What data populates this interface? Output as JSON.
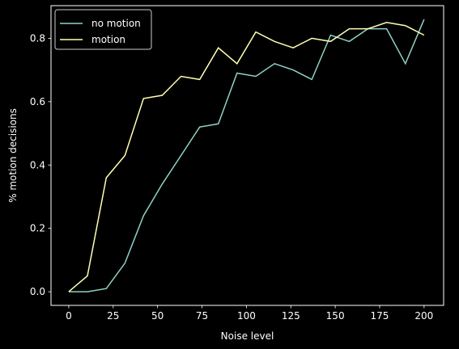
{
  "chart_data": {
    "type": "line",
    "xlabel": "Noise level",
    "ylabel": "% motion decisions",
    "xlim": [
      -10,
      211
    ],
    "ylim": [
      -0.043,
      0.903
    ],
    "xticks": [
      0,
      25,
      50,
      75,
      100,
      125,
      150,
      175,
      200
    ],
    "yticks": [
      0.0,
      0.2,
      0.4,
      0.6,
      0.8
    ],
    "grid": false,
    "legend_position": "top-left",
    "background": "#000000",
    "x": [
      0,
      10.5,
      21.1,
      31.6,
      42.1,
      52.6,
      63.2,
      73.7,
      84.2,
      94.7,
      105.3,
      115.8,
      126.3,
      136.8,
      147.4,
      157.9,
      168.4,
      178.9,
      189.5,
      200
    ],
    "series": [
      {
        "name": "no motion",
        "color": "#8dd3c7",
        "values": [
          0.0,
          0.0,
          0.01,
          0.09,
          0.24,
          0.34,
          0.43,
          0.52,
          0.53,
          0.69,
          0.68,
          0.72,
          0.7,
          0.67,
          0.81,
          0.79,
          0.83,
          0.83,
          0.72,
          0.86
        ]
      },
      {
        "name": "motion",
        "color": "#ffffb3",
        "values": [
          0.0,
          0.05,
          0.36,
          0.43,
          0.61,
          0.62,
          0.68,
          0.67,
          0.77,
          0.72,
          0.82,
          0.79,
          0.77,
          0.8,
          0.79,
          0.83,
          0.83,
          0.85,
          0.84,
          0.81
        ]
      }
    ]
  }
}
